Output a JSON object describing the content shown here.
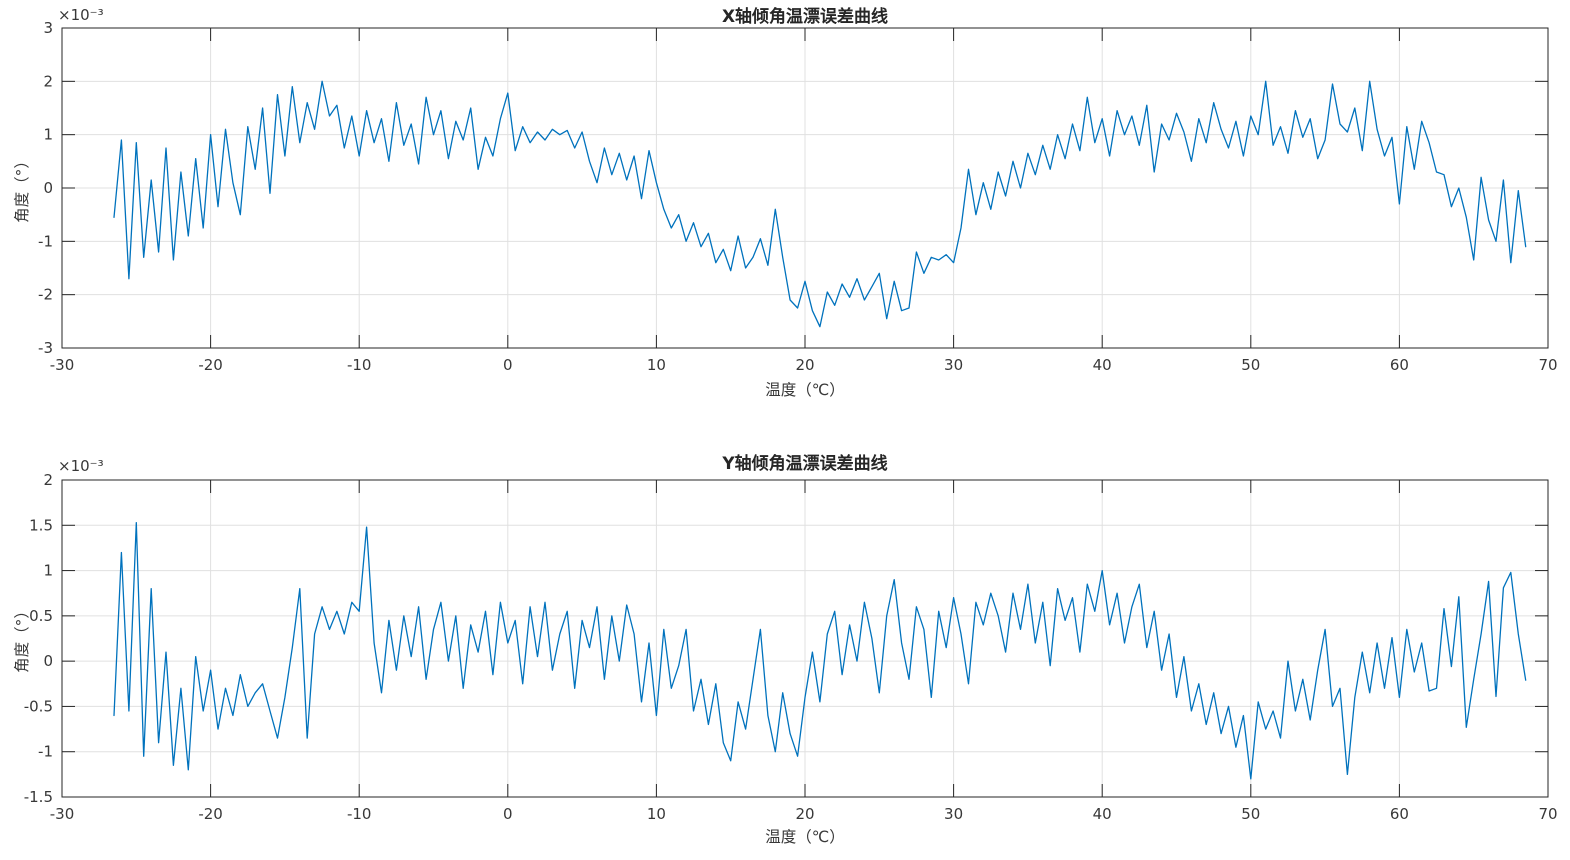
{
  "figure": {
    "background": "#ffffff",
    "line_color": "#0072BD",
    "grid_color": "#e0e0e0",
    "axis_color": "#262626",
    "text_color": "#383838"
  },
  "chart_data": [
    {
      "type": "line",
      "title": "X轴倾角温漂误差曲线",
      "xlabel": "温度（℃）",
      "ylabel": "角度（°）",
      "y_multiplier": "×10⁻³",
      "y_unit": "degrees ×10⁻³",
      "grid": "on",
      "legend": "none",
      "xlim": [
        -30,
        70
      ],
      "ylim": [
        -3,
        3
      ],
      "xticks": [
        -30,
        -20,
        -10,
        0,
        10,
        20,
        30,
        40,
        50,
        60,
        70
      ],
      "yticks": [
        -3,
        -2,
        -1,
        0,
        1,
        2,
        3
      ],
      "x_start": -26.5,
      "x_step": 0.5,
      "y": [
        -0.55,
        0.9,
        -1.7,
        0.85,
        -1.3,
        0.15,
        -1.2,
        0.75,
        -1.35,
        0.3,
        -0.9,
        0.55,
        -0.75,
        1.0,
        -0.35,
        1.1,
        0.1,
        -0.5,
        1.15,
        0.35,
        1.5,
        -0.1,
        1.75,
        0.6,
        1.9,
        0.85,
        1.6,
        1.1,
        2.0,
        1.35,
        1.55,
        0.75,
        1.35,
        0.6,
        1.45,
        0.85,
        1.3,
        0.5,
        1.6,
        0.8,
        1.2,
        0.45,
        1.7,
        1.0,
        1.45,
        0.55,
        1.25,
        0.9,
        1.5,
        0.35,
        0.95,
        0.6,
        1.3,
        1.78,
        0.7,
        1.15,
        0.85,
        1.05,
        0.9,
        1.1,
        1.0,
        1.08,
        0.75,
        1.05,
        0.5,
        0.1,
        0.75,
        0.25,
        0.65,
        0.15,
        0.6,
        -0.2,
        0.7,
        0.1,
        -0.4,
        -0.75,
        -0.5,
        -1.0,
        -0.65,
        -1.1,
        -0.85,
        -1.4,
        -1.15,
        -1.55,
        -0.9,
        -1.5,
        -1.3,
        -0.95,
        -1.45,
        -0.4,
        -1.3,
        -2.1,
        -2.25,
        -1.75,
        -2.3,
        -2.6,
        -1.95,
        -2.2,
        -1.8,
        -2.05,
        -1.7,
        -2.1,
        -1.85,
        -1.6,
        -2.45,
        -1.75,
        -2.3,
        -2.25,
        -1.2,
        -1.6,
        -1.3,
        -1.35,
        -1.25,
        -1.4,
        -0.75,
        0.35,
        -0.5,
        0.1,
        -0.4,
        0.3,
        -0.15,
        0.5,
        0.0,
        0.65,
        0.25,
        0.8,
        0.35,
        1.0,
        0.55,
        1.2,
        0.7,
        1.7,
        0.85,
        1.3,
        0.6,
        1.45,
        1.0,
        1.35,
        0.8,
        1.55,
        0.3,
        1.2,
        0.9,
        1.4,
        1.05,
        0.5,
        1.3,
        0.85,
        1.6,
        1.1,
        0.75,
        1.25,
        0.6,
        1.35,
        1.0,
        2.0,
        0.8,
        1.15,
        0.65,
        1.45,
        0.95,
        1.3,
        0.55,
        0.9,
        1.95,
        1.2,
        1.05,
        1.5,
        0.7,
        2.0,
        1.1,
        0.6,
        0.95,
        -0.3,
        1.15,
        0.35,
        1.25,
        0.85,
        0.3,
        0.25,
        -0.35,
        0.0,
        -0.55,
        -1.35,
        0.2,
        -0.6,
        -1.0,
        0.15,
        -1.4,
        -0.05,
        -1.1
      ]
    },
    {
      "type": "line",
      "title": "Y轴倾角温漂误差曲线",
      "xlabel": "温度（℃）",
      "ylabel": "角度（°）",
      "y_multiplier": "×10⁻³",
      "y_unit": "degrees ×10⁻³",
      "grid": "on",
      "legend": "none",
      "xlim": [
        -30,
        70
      ],
      "ylim": [
        -1.5,
        2
      ],
      "xticks": [
        -30,
        -20,
        -10,
        0,
        10,
        20,
        30,
        40,
        50,
        60,
        70
      ],
      "yticks": [
        -1.5,
        -1,
        -0.5,
        0,
        0.5,
        1,
        1.5,
        2
      ],
      "x_start": -26.5,
      "x_step": 0.5,
      "y": [
        -0.6,
        1.2,
        -0.55,
        1.53,
        -1.05,
        0.8,
        -0.9,
        0.1,
        -1.15,
        -0.3,
        -1.2,
        0.05,
        -0.55,
        -0.1,
        -0.75,
        -0.3,
        -0.6,
        -0.15,
        -0.5,
        -0.35,
        -0.25,
        -0.55,
        -0.85,
        -0.4,
        0.15,
        0.8,
        -0.85,
        0.3,
        0.6,
        0.35,
        0.55,
        0.3,
        0.65,
        0.55,
        1.48,
        0.2,
        -0.35,
        0.45,
        -0.1,
        0.5,
        0.05,
        0.6,
        -0.2,
        0.35,
        0.65,
        0.0,
        0.5,
        -0.3,
        0.4,
        0.1,
        0.55,
        -0.15,
        0.65,
        0.2,
        0.45,
        -0.25,
        0.6,
        0.05,
        0.65,
        -0.1,
        0.3,
        0.55,
        -0.3,
        0.45,
        0.15,
        0.6,
        -0.2,
        0.5,
        0.0,
        0.62,
        0.3,
        -0.45,
        0.2,
        -0.6,
        0.35,
        -0.3,
        -0.05,
        0.35,
        -0.55,
        -0.2,
        -0.7,
        -0.25,
        -0.9,
        -1.1,
        -0.45,
        -0.75,
        -0.2,
        0.35,
        -0.6,
        -1.0,
        -0.35,
        -0.8,
        -1.05,
        -0.4,
        0.1,
        -0.45,
        0.3,
        0.55,
        -0.15,
        0.4,
        0.0,
        0.65,
        0.25,
        -0.35,
        0.5,
        0.9,
        0.2,
        -0.2,
        0.6,
        0.35,
        -0.4,
        0.55,
        0.15,
        0.7,
        0.3,
        -0.25,
        0.65,
        0.4,
        0.75,
        0.5,
        0.1,
        0.75,
        0.35,
        0.85,
        0.2,
        0.65,
        -0.05,
        0.8,
        0.45,
        0.7,
        0.1,
        0.85,
        0.55,
        1.0,
        0.4,
        0.75,
        0.2,
        0.6,
        0.85,
        0.15,
        0.55,
        -0.1,
        0.3,
        -0.4,
        0.05,
        -0.55,
        -0.25,
        -0.7,
        -0.35,
        -0.8,
        -0.5,
        -0.95,
        -0.6,
        -1.3,
        -0.45,
        -0.75,
        -0.55,
        -0.85,
        0.0,
        -0.55,
        -0.2,
        -0.65,
        -0.1,
        0.35,
        -0.5,
        -0.3,
        -1.25,
        -0.4,
        0.1,
        -0.35,
        0.2,
        -0.3,
        0.26,
        -0.4,
        0.35,
        -0.12,
        0.2,
        -0.33,
        -0.3,
        0.58,
        -0.06,
        0.71,
        -0.73,
        -0.2,
        0.3,
        0.88,
        -0.39,
        0.81,
        0.98,
        0.3,
        -0.21
      ]
    }
  ]
}
